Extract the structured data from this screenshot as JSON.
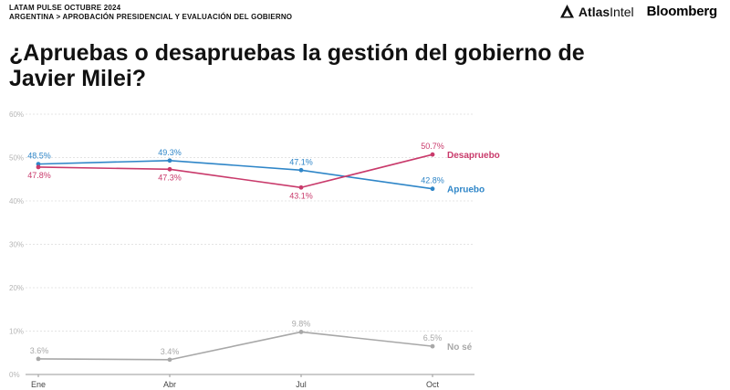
{
  "header": {
    "survey": "LATAM PULSE OCTUBRE 2024",
    "breadcrumb": "ARGENTINA > APROBACIÓN PRESIDENCIAL Y EVALUACIÓN DEL GOBIERNO"
  },
  "brands": {
    "atlas_bold": "Atlas",
    "atlas_light": "Intel",
    "bloomberg": "Bloomberg"
  },
  "chart_data": {
    "type": "line",
    "title": "¿Apruebas o desapruebas la gestión del gobierno de Javier Milei?",
    "categories": [
      "Ene",
      "Abr",
      "Jul",
      "Oct"
    ],
    "ylim": [
      0,
      60
    ],
    "yticks": [
      "0%",
      "10%",
      "20%",
      "30%",
      "40%",
      "50%",
      "60%"
    ],
    "grid": true,
    "legend": "inline-right",
    "series": [
      {
        "name": "Apruebo",
        "color": "#2f86c8",
        "values": [
          48.5,
          49.3,
          47.1,
          42.8
        ],
        "labels": [
          "48.5%",
          "49.3%",
          "47.1%",
          "42.8%"
        ]
      },
      {
        "name": "Desapruebo",
        "color": "#c93a6b",
        "values": [
          47.8,
          47.3,
          43.1,
          50.7
        ],
        "labels": [
          "47.8%",
          "47.3%",
          "43.1%",
          "50.7%"
        ]
      },
      {
        "name": "No sé",
        "color": "#a8a8a8",
        "values": [
          3.6,
          3.4,
          9.8,
          6.5
        ],
        "labels": [
          "3.6%",
          "3.4%",
          "9.8%",
          "6.5%"
        ]
      }
    ]
  }
}
